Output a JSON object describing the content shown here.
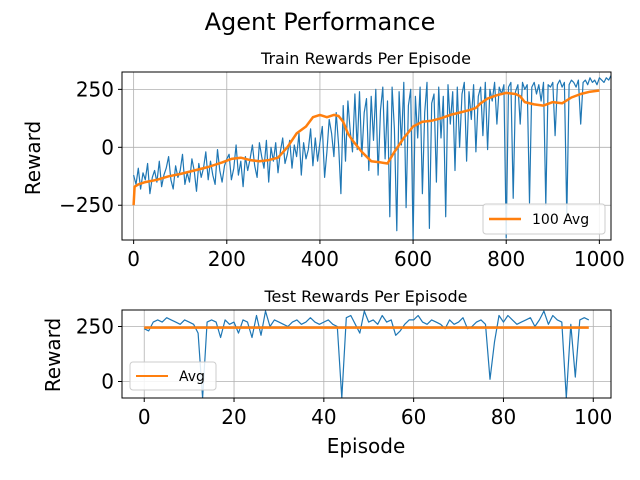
{
  "figure": {
    "suptitle": "Agent Performance"
  },
  "colors": {
    "raw": "#1f77b4",
    "avg": "#ff7f0e",
    "grid": "#b0b0b0"
  },
  "chart_data": [
    {
      "type": "line",
      "title": "Train Rewards Per Episode",
      "xlabel": "",
      "ylabel": "Reward",
      "xlim": [
        -25,
        1025
      ],
      "ylim": [
        -400,
        325
      ],
      "xticks": [
        0,
        200,
        400,
        600,
        800,
        1000
      ],
      "yticks": [
        250,
        0,
        -250
      ],
      "ytick_labels": [
        "250",
        "0",
        "−250"
      ],
      "grid": true,
      "legend": "lower-right",
      "series": [
        {
          "name": "",
          "kind": "raw",
          "x_step": 5,
          "values": [
            -120,
            -160,
            -90,
            -180,
            -110,
            -140,
            -70,
            -200,
            -130,
            -100,
            -150,
            -60,
            -170,
            -120,
            -90,
            -40,
            -140,
            -180,
            -80,
            -130,
            -100,
            -30,
            -160,
            -110,
            -150,
            -50,
            -100,
            -190,
            -70,
            -130,
            -90,
            -20,
            -140,
            -60,
            -120,
            -160,
            -10,
            -100,
            -150,
            -80,
            -50,
            -30,
            -140,
            -90,
            10,
            -120,
            -60,
            -170,
            -40,
            -100,
            -50,
            10,
            -80,
            -130,
            20,
            -40,
            -90,
            30,
            -150,
            0,
            -60,
            20,
            -110,
            -20,
            40,
            -70,
            -30,
            30,
            -90,
            10,
            -40,
            60,
            -120,
            20,
            -50,
            -10,
            80,
            -80,
            40,
            -60,
            20,
            90,
            -130,
            -20,
            120,
            60,
            -40,
            150,
            10,
            -200,
            180,
            -60,
            200,
            70,
            -20,
            230,
            -10,
            240,
            -40,
            150,
            210,
            -100,
            220,
            30,
            250,
            -120,
            160,
            260,
            -50,
            200,
            -300,
            260,
            80,
            -360,
            240,
            10,
            280,
            -260,
            180,
            250,
            -400,
            220,
            40,
            260,
            -200,
            150,
            280,
            -350,
            190,
            230,
            -150,
            260,
            40,
            220,
            -300,
            270,
            100,
            240,
            -100,
            260,
            0,
            230,
            280,
            -60,
            240,
            120,
            270,
            -20,
            220,
            260,
            50,
            280,
            -10,
            250,
            200,
            280,
            100,
            260,
            230,
            270,
            -390,
            260,
            280,
            -220,
            240,
            270,
            100,
            280,
            250,
            270,
            -240,
            260,
            280,
            230,
            270,
            200,
            280,
            -250,
            270,
            260,
            280,
            50,
            270,
            290,
            260,
            280,
            -300,
            270,
            290,
            280,
            260,
            290,
            100,
            280,
            290,
            270,
            300,
            280,
            290,
            270,
            300,
            290,
            280,
            300,
            290,
            310
          ]
        },
        {
          "name": "100 Avg",
          "kind": "avg",
          "x": [
            0,
            2,
            10,
            25,
            50,
            75,
            100,
            130,
            160,
            190,
            210,
            230,
            250,
            270,
            290,
            310,
            330,
            350,
            370,
            385,
            400,
            415,
            430,
            440,
            450,
            460,
            470,
            490,
            510,
            530,
            545,
            560,
            580,
            600,
            620,
            640,
            660,
            680,
            700,
            720,
            735,
            745,
            760,
            780,
            800,
            820,
            830,
            840,
            860,
            880,
            900,
            920,
            940,
            960,
            980,
            1000
          ],
          "values": [
            -250,
            -170,
            -160,
            -150,
            -140,
            -125,
            -115,
            -100,
            -85,
            -65,
            -50,
            -45,
            -55,
            -60,
            -55,
            -45,
            0,
            60,
            90,
            130,
            140,
            130,
            140,
            135,
            110,
            60,
            30,
            -20,
            -60,
            -65,
            -70,
            -20,
            40,
            90,
            110,
            115,
            125,
            140,
            150,
            160,
            170,
            190,
            210,
            225,
            235,
            230,
            220,
            195,
            185,
            180,
            195,
            190,
            215,
            230,
            240,
            245
          ]
        }
      ]
    },
    {
      "type": "line",
      "title": "Test Rewards Per Episode",
      "xlabel": "Episode",
      "ylabel": "Reward",
      "xlim": [
        -4.95,
        103.95
      ],
      "ylim": [
        -75,
        325
      ],
      "xticks": [
        0,
        20,
        40,
        60,
        80,
        100
      ],
      "yticks": [
        250,
        0
      ],
      "ytick_labels": [
        "250",
        "0"
      ],
      "grid": true,
      "legend": "lower-left",
      "series": [
        {
          "name": "",
          "kind": "raw",
          "x_step": 1,
          "values": [
            240,
            230,
            270,
            280,
            270,
            290,
            280,
            270,
            260,
            280,
            270,
            260,
            220,
            -320,
            270,
            280,
            270,
            200,
            280,
            260,
            270,
            220,
            280,
            270,
            200,
            300,
            210,
            320,
            250,
            280,
            270,
            260,
            250,
            270,
            280,
            260,
            270,
            290,
            270,
            260,
            270,
            280,
            260,
            250,
            -350,
            290,
            300,
            260,
            220,
            320,
            270,
            280,
            260,
            300,
            270,
            280,
            210,
            230,
            260,
            280,
            280,
            300,
            270,
            260,
            280,
            270,
            260,
            240,
            280,
            260,
            270,
            290,
            240,
            250,
            270,
            280,
            260,
            10,
            180,
            300,
            270,
            300,
            280,
            260,
            270,
            280,
            290,
            250,
            280,
            320,
            260,
            300,
            280,
            270,
            -250,
            260,
            20,
            280,
            290,
            280
          ]
        },
        {
          "name": "Avg",
          "kind": "avg",
          "x": [
            0,
            99
          ],
          "values": [
            245,
            245
          ]
        }
      ]
    }
  ]
}
